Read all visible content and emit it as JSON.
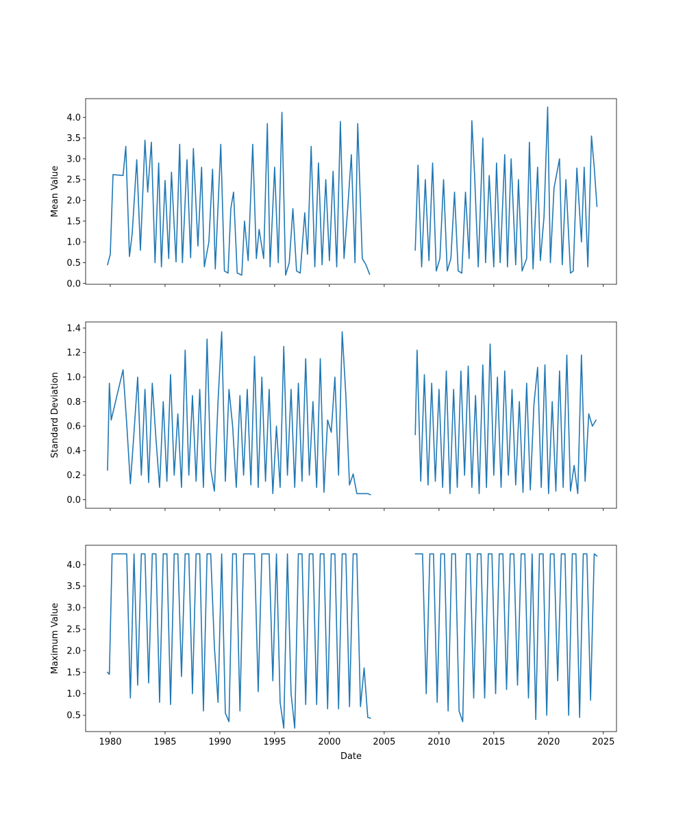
{
  "chart_data": [
    {
      "type": "line",
      "ylabel": "Mean Value",
      "xlabel": "",
      "ylim": [
        -0.02,
        4.45
      ],
      "yticks": [
        0.0,
        0.5,
        1.0,
        1.5,
        2.0,
        2.5,
        3.0,
        3.5,
        4.0
      ],
      "ytick_labels": [
        "0.0",
        "0.5",
        "1.0",
        "1.5",
        "2.0",
        "2.5",
        "3.0",
        "3.5",
        "4.0"
      ],
      "x_tick_labels_visible": false,
      "series_color": "#1f77b4",
      "series": [
        {
          "x": [
            "1979-10",
            "1980-01",
            "1980-04",
            "1981-03",
            "1981-06",
            "1981-10",
            "1982-01",
            "1982-06",
            "1982-10",
            "1983-03",
            "1983-06",
            "1983-10",
            "1984-02",
            "1984-06",
            "1984-09",
            "1985-01",
            "1985-05",
            "1985-08",
            "1986-01",
            "1986-05",
            "1986-08",
            "1987-01",
            "1987-05",
            "1987-08",
            "1988-01",
            "1988-05",
            "1988-08",
            "1989-01",
            "1989-05",
            "1989-08",
            "1990-02",
            "1990-06",
            "1990-10",
            "1991-01",
            "1991-04",
            "1991-08",
            "1992-01",
            "1992-04",
            "1992-08",
            "1993-01",
            "1993-05",
            "1993-08",
            "1994-01",
            "1994-05",
            "1994-08",
            "1995-01",
            "1995-05",
            "1995-09",
            "1996-01",
            "1996-05",
            "1996-09",
            "1997-01",
            "1997-05",
            "1997-10",
            "1998-01",
            "1998-05",
            "1998-09",
            "1999-01",
            "1999-05",
            "1999-09",
            "2000-01",
            "2000-05",
            "2000-09",
            "2001-01",
            "2001-05",
            "2001-09",
            "2002-01",
            "2002-05",
            "2002-08",
            "2003-01",
            "2003-05",
            "2003-09"
          ],
          "y": [
            0.45,
            0.7,
            2.62,
            2.6,
            3.3,
            0.65,
            1.2,
            2.98,
            0.8,
            3.45,
            2.2,
            3.4,
            0.5,
            2.9,
            0.4,
            2.48,
            0.6,
            2.68,
            0.52,
            3.35,
            0.5,
            2.98,
            0.62,
            3.25,
            0.9,
            2.8,
            0.4,
            1.0,
            2.75,
            0.35,
            3.35,
            0.3,
            0.25,
            1.8,
            2.2,
            0.25,
            0.2,
            1.5,
            0.55,
            3.35,
            0.6,
            1.3,
            0.6,
            3.85,
            0.4,
            2.8,
            0.5,
            4.12,
            0.2,
            0.5,
            1.8,
            0.3,
            0.25,
            1.7,
            0.7,
            3.3,
            0.4,
            2.9,
            0.45,
            2.5,
            0.55,
            2.7,
            0.4,
            3.9,
            0.6,
            1.8,
            3.1,
            0.5,
            3.85,
            0.6,
            0.45,
            0.22
          ]
        },
        {
          "x": [
            "2007-11",
            "2008-02",
            "2008-06",
            "2008-10",
            "2009-02",
            "2009-06",
            "2009-10",
            "2010-02",
            "2010-06",
            "2010-10",
            "2011-02",
            "2011-06",
            "2011-10",
            "2012-02",
            "2012-06",
            "2012-10",
            "2013-01",
            "2013-04",
            "2013-08",
            "2014-01",
            "2014-04",
            "2014-08",
            "2015-01",
            "2015-04",
            "2015-08",
            "2016-01",
            "2016-04",
            "2016-08",
            "2017-01",
            "2017-04",
            "2017-08",
            "2018-01",
            "2018-04",
            "2018-08",
            "2019-01",
            "2019-04",
            "2019-08",
            "2019-12",
            "2020-03",
            "2020-07",
            "2021-01",
            "2021-04",
            "2021-08",
            "2022-01",
            "2022-04",
            "2022-08",
            "2023-01",
            "2023-04",
            "2023-08",
            "2023-12",
            "2024-03",
            "2024-06"
          ],
          "y": [
            0.8,
            2.85,
            0.4,
            2.5,
            0.55,
            2.9,
            0.3,
            0.6,
            2.5,
            0.3,
            0.6,
            2.2,
            0.3,
            0.25,
            2.2,
            0.6,
            3.92,
            2.6,
            0.4,
            3.5,
            0.5,
            2.6,
            0.4,
            2.9,
            0.5,
            3.1,
            0.4,
            3.0,
            0.45,
            2.5,
            0.3,
            0.6,
            3.4,
            0.35,
            2.8,
            0.55,
            1.6,
            4.25,
            0.5,
            2.3,
            3.0,
            0.45,
            2.5,
            0.25,
            0.3,
            2.78,
            1.0,
            2.8,
            0.4,
            3.55,
            2.8,
            1.85
          ]
        }
      ]
    },
    {
      "type": "line",
      "ylabel": "Standard Deviation",
      "xlabel": "",
      "ylim": [
        -0.07,
        1.45
      ],
      "yticks": [
        0.0,
        0.2,
        0.4,
        0.6,
        0.8,
        1.0,
        1.2,
        1.4
      ],
      "ytick_labels": [
        "0.0",
        "0.2",
        "0.4",
        "0.6",
        "0.8",
        "1.0",
        "1.2",
        "1.4"
      ],
      "x_tick_labels_visible": false,
      "series_color": "#1f77b4",
      "series": [
        {
          "x": [
            "1979-10",
            "1979-12",
            "1980-02",
            "1981-03",
            "1981-07",
            "1981-11",
            "1982-03",
            "1982-07",
            "1982-11",
            "1983-03",
            "1983-07",
            "1983-11",
            "1984-03",
            "1984-07",
            "1984-11",
            "1985-03",
            "1985-07",
            "1985-11",
            "1986-03",
            "1986-07",
            "1986-11",
            "1987-03",
            "1987-07",
            "1987-11",
            "1988-03",
            "1988-07",
            "1988-11",
            "1989-03",
            "1989-07",
            "1989-11",
            "1990-03",
            "1990-07",
            "1990-11",
            "1991-03",
            "1991-07",
            "1991-11",
            "1992-03",
            "1992-07",
            "1992-11",
            "1993-03",
            "1993-07",
            "1993-11",
            "1994-03",
            "1994-07",
            "1994-11",
            "1995-03",
            "1995-07",
            "1995-11",
            "1996-03",
            "1996-07",
            "1996-11",
            "1997-03",
            "1997-07",
            "1997-11",
            "1998-03",
            "1998-07",
            "1998-11",
            "1999-03",
            "1999-07",
            "1999-11",
            "2000-03",
            "2000-07",
            "2000-11",
            "2001-03",
            "2001-07",
            "2001-11",
            "2002-03",
            "2002-07",
            "2002-11",
            "2003-03",
            "2003-07",
            "2003-10"
          ],
          "y": [
            0.24,
            0.95,
            0.65,
            1.06,
            0.62,
            0.13,
            0.55,
            1.0,
            0.2,
            0.9,
            0.14,
            0.95,
            0.5,
            0.1,
            0.8,
            0.15,
            1.02,
            0.2,
            0.7,
            0.1,
            1.22,
            0.2,
            0.85,
            0.15,
            0.9,
            0.1,
            1.31,
            0.25,
            0.07,
            0.8,
            1.37,
            0.15,
            0.9,
            0.6,
            0.1,
            0.85,
            0.2,
            0.9,
            0.12,
            1.17,
            0.1,
            1.0,
            0.15,
            0.9,
            0.05,
            0.6,
            0.1,
            1.25,
            0.2,
            0.9,
            0.1,
            0.95,
            0.15,
            1.15,
            0.2,
            0.8,
            0.1,
            1.15,
            0.06,
            0.65,
            0.55,
            1.0,
            0.2,
            1.37,
            0.85,
            0.12,
            0.21,
            0.05,
            0.05,
            0.05,
            0.05,
            0.04
          ]
        },
        {
          "x": [
            "2007-11",
            "2008-01",
            "2008-05",
            "2008-09",
            "2009-01",
            "2009-05",
            "2009-09",
            "2010-01",
            "2010-05",
            "2010-09",
            "2011-01",
            "2011-05",
            "2011-09",
            "2012-01",
            "2012-05",
            "2012-09",
            "2013-01",
            "2013-05",
            "2013-09",
            "2014-01",
            "2014-05",
            "2014-09",
            "2015-01",
            "2015-05",
            "2015-09",
            "2016-01",
            "2016-05",
            "2016-09",
            "2017-01",
            "2017-05",
            "2017-09",
            "2018-01",
            "2018-05",
            "2018-09",
            "2019-01",
            "2019-05",
            "2019-09",
            "2020-01",
            "2020-05",
            "2020-09",
            "2021-01",
            "2021-05",
            "2021-09",
            "2022-01",
            "2022-05",
            "2022-09",
            "2023-01",
            "2023-05",
            "2023-09",
            "2024-01",
            "2024-05"
          ],
          "y": [
            0.53,
            1.22,
            0.15,
            1.02,
            0.12,
            0.95,
            0.15,
            0.9,
            0.1,
            1.05,
            0.05,
            0.9,
            0.1,
            1.05,
            0.2,
            1.09,
            0.1,
            0.85,
            0.05,
            1.1,
            0.1,
            1.27,
            0.2,
            1.0,
            0.1,
            1.05,
            0.2,
            0.9,
            0.12,
            0.8,
            0.06,
            0.95,
            0.08,
            0.78,
            1.08,
            0.1,
            1.1,
            0.05,
            0.8,
            0.07,
            1.05,
            0.1,
            1.18,
            0.07,
            0.28,
            0.05,
            1.18,
            0.15,
            0.7,
            0.6,
            0.65
          ]
        }
      ]
    },
    {
      "type": "line",
      "ylabel": "Maximum Value",
      "xlabel": "Date",
      "ylim": [
        0.12,
        4.45
      ],
      "yticks": [
        0.5,
        1.0,
        1.5,
        2.0,
        2.5,
        3.0,
        3.5,
        4.0
      ],
      "ytick_labels": [
        "0.5",
        "1.0",
        "1.5",
        "2.0",
        "2.5",
        "3.0",
        "3.5",
        "4.0"
      ],
      "x_tick_labels_visible": true,
      "xticks": [
        "1980",
        "1985",
        "1990",
        "1995",
        "2000",
        "2005",
        "2010",
        "2015",
        "2020",
        "2025"
      ],
      "series_color": "#1f77b4",
      "series": [
        {
          "x": [
            "1979-10",
            "1979-12",
            "1980-03",
            "1981-03",
            "1981-07",
            "1981-11",
            "1982-03",
            "1982-07",
            "1982-11",
            "1983-03",
            "1983-07",
            "1983-11",
            "1984-03",
            "1984-07",
            "1984-11",
            "1985-03",
            "1985-07",
            "1985-11",
            "1986-03",
            "1986-07",
            "1986-11",
            "1987-03",
            "1987-07",
            "1987-11",
            "1988-03",
            "1988-07",
            "1988-11",
            "1989-03",
            "1989-07",
            "1989-11",
            "1990-03",
            "1990-07",
            "1990-11",
            "1991-03",
            "1991-07",
            "1991-11",
            "1992-03",
            "1992-07",
            "1992-11",
            "1993-03",
            "1993-07",
            "1993-11",
            "1994-03",
            "1994-07",
            "1994-11",
            "1995-03",
            "1995-07",
            "1995-11",
            "1996-03",
            "1996-07",
            "1996-11",
            "1997-03",
            "1997-07",
            "1997-11",
            "1998-03",
            "1998-07",
            "1998-11",
            "1999-03",
            "1999-07",
            "1999-11",
            "2000-03",
            "2000-07",
            "2000-11",
            "2001-03",
            "2001-07",
            "2001-11",
            "2002-03",
            "2002-07",
            "2002-11",
            "2003-03",
            "2003-07",
            "2003-10"
          ],
          "y": [
            1.5,
            1.45,
            4.25,
            4.25,
            4.25,
            0.9,
            4.25,
            1.2,
            4.25,
            4.25,
            1.25,
            4.25,
            4.25,
            0.8,
            4.25,
            4.25,
            0.75,
            4.25,
            4.25,
            1.4,
            4.25,
            4.25,
            1.0,
            4.25,
            4.25,
            0.6,
            4.25,
            4.25,
            2.1,
            0.8,
            4.25,
            0.55,
            0.35,
            4.25,
            4.25,
            0.6,
            4.25,
            4.25,
            4.25,
            4.25,
            1.05,
            4.25,
            4.25,
            4.25,
            1.3,
            4.25,
            0.8,
            0.2,
            4.25,
            1.0,
            0.2,
            4.25,
            4.25,
            0.75,
            4.25,
            4.25,
            0.75,
            4.25,
            4.25,
            0.65,
            4.25,
            4.25,
            0.65,
            4.25,
            4.25,
            0.7,
            4.25,
            4.25,
            0.7,
            1.6,
            0.45,
            0.43
          ]
        },
        {
          "x": [
            "2007-11",
            "2008-03",
            "2008-07",
            "2008-11",
            "2009-03",
            "2009-07",
            "2009-11",
            "2010-03",
            "2010-07",
            "2010-11",
            "2011-03",
            "2011-07",
            "2011-11",
            "2012-03",
            "2012-07",
            "2012-11",
            "2013-03",
            "2013-07",
            "2013-11",
            "2014-03",
            "2014-07",
            "2014-11",
            "2015-03",
            "2015-07",
            "2015-11",
            "2016-03",
            "2016-07",
            "2016-11",
            "2017-03",
            "2017-07",
            "2017-11",
            "2018-03",
            "2018-07",
            "2018-11",
            "2019-03",
            "2019-07",
            "2019-11",
            "2020-03",
            "2020-07",
            "2020-11",
            "2021-03",
            "2021-07",
            "2021-11",
            "2022-03",
            "2022-07",
            "2022-11",
            "2023-03",
            "2023-07",
            "2023-11",
            "2024-03",
            "2024-06"
          ],
          "y": [
            4.25,
            4.25,
            4.25,
            1.0,
            4.25,
            4.25,
            0.8,
            4.25,
            4.25,
            0.6,
            4.25,
            4.25,
            0.6,
            0.35,
            4.25,
            4.25,
            0.9,
            4.25,
            4.25,
            0.9,
            4.25,
            4.25,
            1.0,
            4.25,
            4.25,
            1.1,
            4.25,
            4.25,
            1.2,
            4.25,
            4.25,
            0.9,
            4.25,
            0.4,
            4.25,
            4.25,
            0.5,
            4.25,
            4.25,
            1.3,
            4.25,
            4.25,
            0.5,
            4.25,
            4.25,
            0.45,
            4.25,
            4.25,
            0.85,
            4.25,
            4.2
          ]
        }
      ]
    }
  ]
}
